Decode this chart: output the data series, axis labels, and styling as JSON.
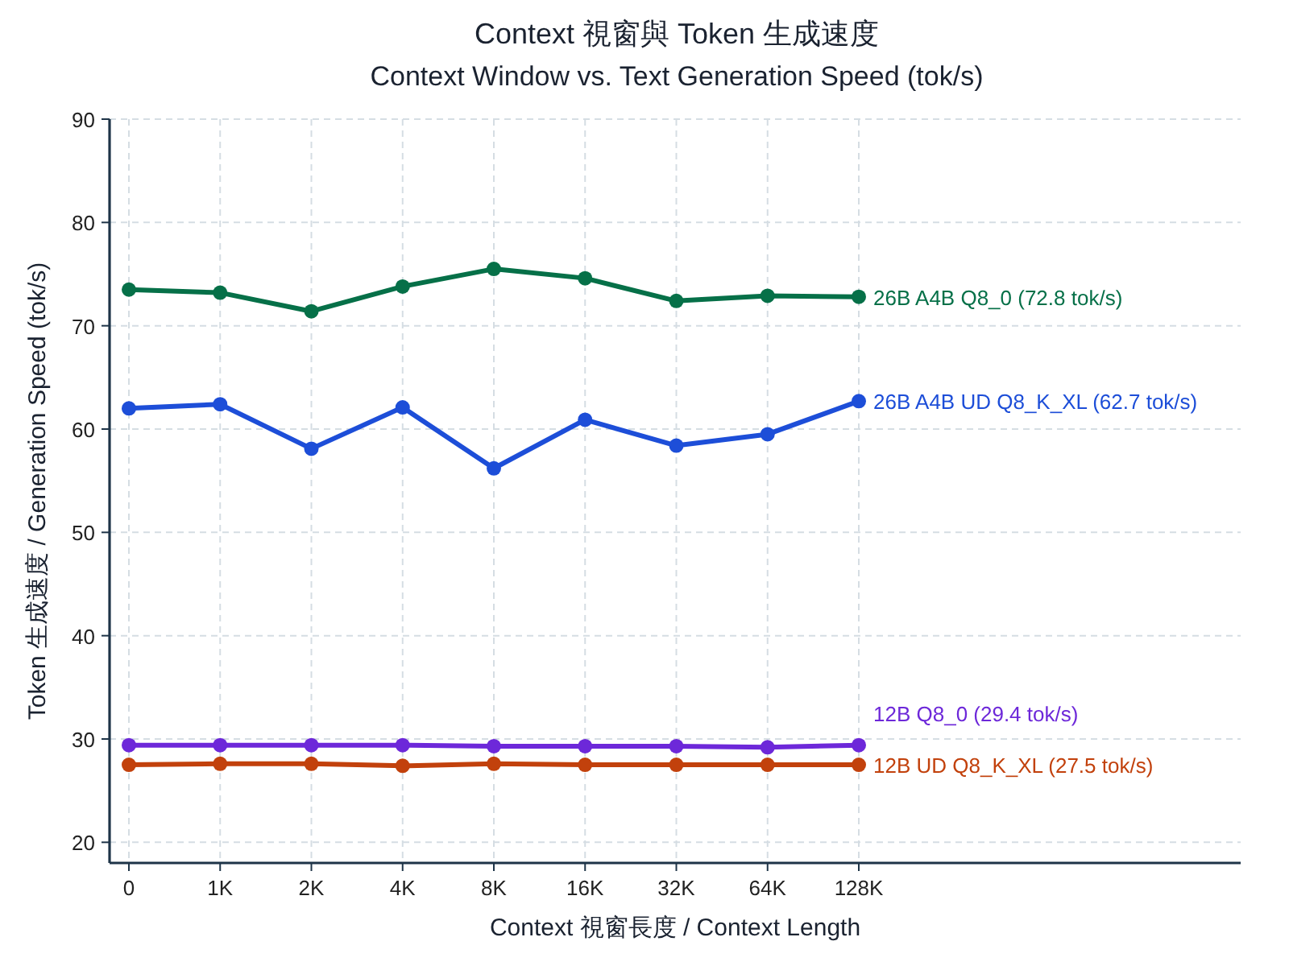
{
  "chart_data": {
    "type": "line",
    "title": "Context 視窗與 Token 生成速度",
    "subtitle": "Context Window vs. Text Generation Speed (tok/s)",
    "xlabel": "Context 視窗長度 / Context Length",
    "ylabel": "Token 生成速度 / Generation Speed (tok/s)",
    "categories": [
      "0",
      "1K",
      "2K",
      "4K",
      "8K",
      "16K",
      "32K",
      "64K",
      "128K"
    ],
    "series": [
      {
        "name": "26B A4B Q8_0 (72.8 tok/s)",
        "color": "#067048",
        "values": [
          73.5,
          73.2,
          71.4,
          73.8,
          75.5,
          74.6,
          72.4,
          72.9,
          72.8
        ]
      },
      {
        "name": "26B A4B UD Q8_K_XL (62.7 tok/s)",
        "color": "#1d4ed8",
        "values": [
          62.0,
          62.4,
          58.1,
          62.1,
          56.2,
          60.9,
          58.4,
          59.5,
          62.7
        ]
      },
      {
        "name": "12B Q8_0 (29.4 tok/s)",
        "color": "#6d28d9",
        "values": [
          29.4,
          29.4,
          29.4,
          29.4,
          29.3,
          29.3,
          29.3,
          29.2,
          29.4
        ]
      },
      {
        "name": "12B UD Q8_K_XL (27.5 tok/s)",
        "color": "#c2410c",
        "values": [
          27.5,
          27.6,
          27.6,
          27.4,
          27.6,
          27.5,
          27.5,
          27.5,
          27.5
        ]
      }
    ],
    "ylim": [
      18,
      90
    ],
    "yticks": [
      20,
      30,
      40,
      50,
      60,
      70,
      80,
      90
    ],
    "grid": true,
    "marker": "circle"
  }
}
